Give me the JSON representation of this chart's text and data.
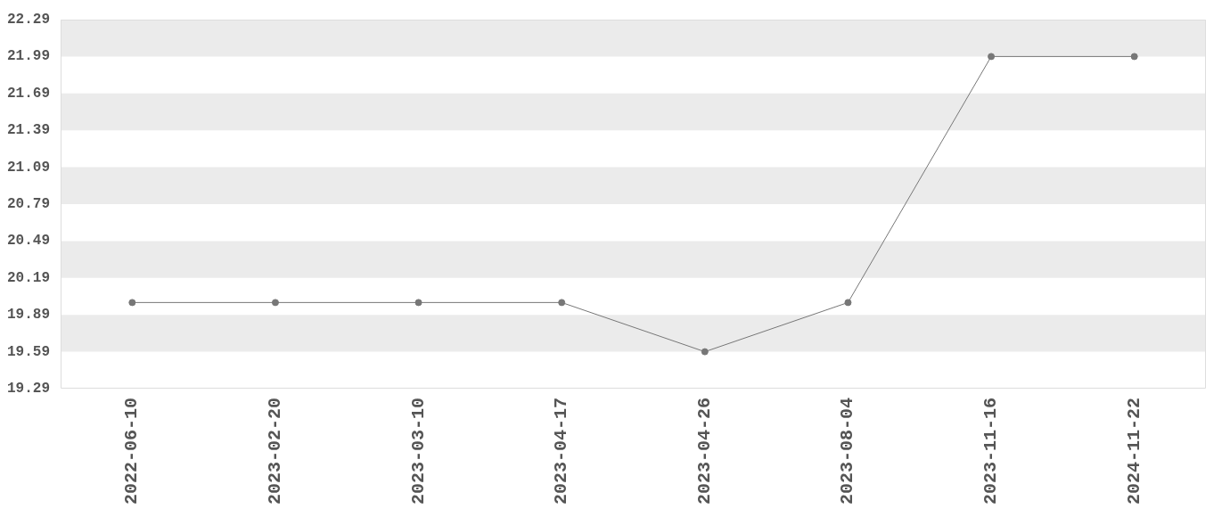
{
  "chart_data": {
    "type": "line",
    "categories": [
      "2022-06-10",
      "2023-02-20",
      "2023-03-10",
      "2023-04-17",
      "2023-04-26",
      "2023-08-04",
      "2023-11-16",
      "2024-11-22"
    ],
    "series": [
      {
        "color": "#777777",
        "values": [
          19.99,
          19.99,
          19.99,
          19.99,
          19.59,
          19.99,
          21.99,
          21.99
        ]
      }
    ],
    "ylim": [
      19.29,
      22.29
    ],
    "yticks": [
      19.29,
      19.59,
      19.89,
      20.19,
      20.49,
      20.79,
      21.09,
      21.39,
      21.69,
      21.99,
      22.29
    ],
    "bands": [
      {
        "axis": "y",
        "from": 21.99,
        "to": 22.29,
        "color": "#ebebeb"
      },
      {
        "axis": "y",
        "from": 21.39,
        "to": 21.69,
        "color": "#ebebeb"
      },
      {
        "axis": "y",
        "from": 20.79,
        "to": 21.09,
        "color": "#ebebeb"
      },
      {
        "axis": "y",
        "from": 20.19,
        "to": 20.49,
        "color": "#ebebeb"
      },
      {
        "axis": "y",
        "from": 19.59,
        "to": 19.89,
        "color": "#ebebeb"
      }
    ],
    "legend": false,
    "marker": "circle",
    "line_style": "solid"
  }
}
